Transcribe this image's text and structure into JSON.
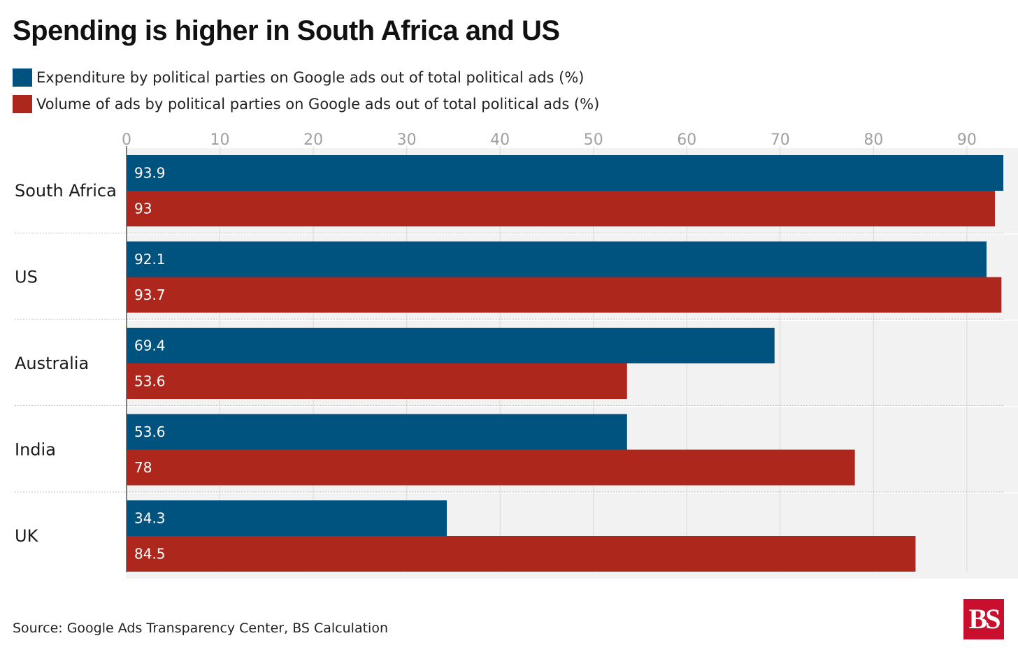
{
  "chart_data": {
    "type": "bar",
    "orientation": "horizontal",
    "title": "Spending is higher in South Africa and US",
    "categories": [
      "South Africa",
      "US",
      "Australia",
      "India",
      "UK"
    ],
    "series": [
      {
        "name": "Expenditure by political parties on Google ads out of total political ads (%)",
        "color": "#00527f",
        "values": [
          93.9,
          92.1,
          69.4,
          53.6,
          34.3
        ],
        "labels": [
          "93.9",
          "92.1",
          "69.4",
          "53.6",
          "34.3"
        ]
      },
      {
        "name": "Volume of ads by political parties on Google ads out of total political ads (%)",
        "color": "#ae271c",
        "values": [
          93,
          93.7,
          53.6,
          78,
          84.5
        ],
        "labels": [
          "93",
          "93.7",
          "53.6",
          "78",
          "84.5"
        ]
      }
    ],
    "xticks": [
      "0",
      "10",
      "20",
      "30",
      "40",
      "50",
      "60",
      "70",
      "80",
      "90"
    ],
    "xlim": [
      0,
      93.9
    ],
    "xlabel": "",
    "ylabel": "",
    "grid": true,
    "legend_position": "top-left"
  },
  "source": "Source: Google Ads Transparency Center, BS Calculation",
  "logo_text": "BS",
  "colors": {
    "background_band": "#f2f2f2",
    "grid": "#d9d9d9",
    "tick_label": "#a0a0a0"
  }
}
